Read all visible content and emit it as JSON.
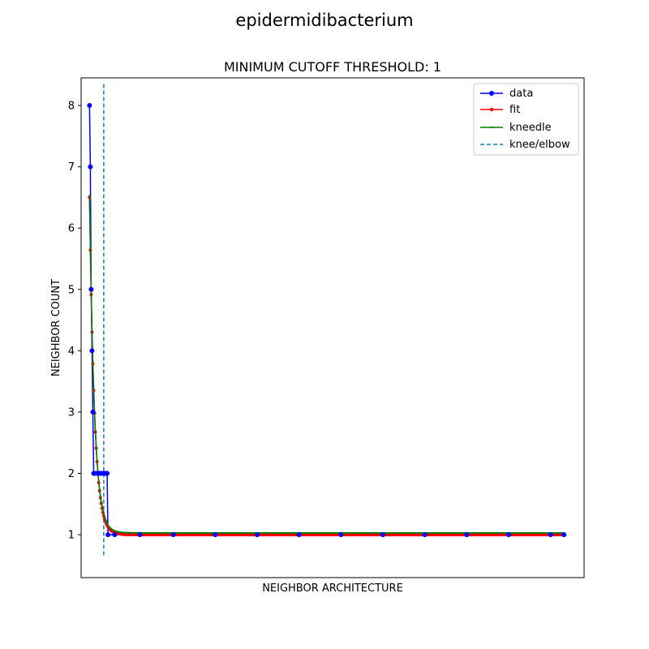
{
  "figure": {
    "suptitle": "epidermidibacterium"
  },
  "chart_data": {
    "type": "line",
    "title": "MINIMUM CUTOFF THRESHOLD: 1",
    "xlabel": "NEIGHBOR ARCHITECTURE",
    "ylabel": "NEIGHBOR COUNT",
    "x_ticks_visible": false,
    "ylim": [
      0.3,
      8.45
    ],
    "xlim": [
      -10,
      590
    ],
    "y_ticks": [
      1,
      2,
      3,
      4,
      5,
      6,
      7,
      8
    ],
    "grid": false,
    "legend_position": "top-right",
    "knee_x": 17,
    "series": [
      {
        "name": "data",
        "color": "#0000ff",
        "marker": "circle",
        "points": [
          [
            0,
            8
          ],
          [
            1,
            7
          ],
          [
            2,
            5
          ],
          [
            3,
            4
          ],
          [
            4,
            3
          ],
          [
            5,
            2
          ],
          [
            6,
            2
          ],
          [
            8,
            2
          ],
          [
            10,
            2
          ],
          [
            12,
            2
          ],
          [
            14,
            2
          ],
          [
            16,
            2
          ],
          [
            18,
            2
          ],
          [
            20,
            2
          ],
          [
            21,
            2
          ],
          [
            22,
            1
          ],
          [
            30,
            1
          ],
          [
            60,
            1
          ],
          [
            100,
            1
          ],
          [
            150,
            1
          ],
          [
            200,
            1
          ],
          [
            250,
            1
          ],
          [
            300,
            1
          ],
          [
            350,
            1
          ],
          [
            400,
            1
          ],
          [
            450,
            1
          ],
          [
            500,
            1
          ],
          [
            550,
            1
          ],
          [
            566,
            1
          ]
        ]
      },
      {
        "name": "fit",
        "color": "#ff0000",
        "marker": "dot",
        "model": {
          "a": 5.5,
          "k": 0.17,
          "c": 1.0,
          "x_start": 0,
          "x_end": 566,
          "step": 1
        }
      },
      {
        "name": "kneedle",
        "color": "#008000",
        "marker": "small-dot",
        "model": {
          "a": 5.5,
          "k": 0.17,
          "c": 1.03,
          "x_start": 0,
          "x_end": 566,
          "step": 1
        }
      },
      {
        "name": "knee/elbow",
        "color": "#1f77b4",
        "style": "dashed"
      }
    ]
  }
}
